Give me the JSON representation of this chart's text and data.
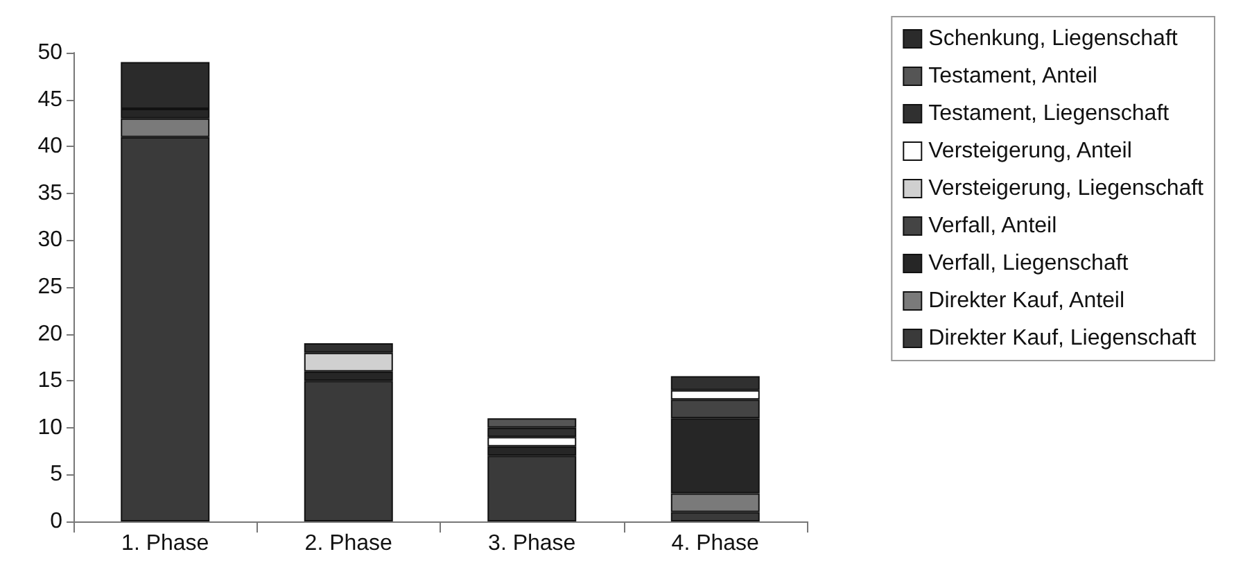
{
  "chart_data": {
    "type": "bar",
    "stacked": true,
    "categories": [
      "1. Phase",
      "2. Phase",
      "3. Phase",
      "4. Phase"
    ],
    "series": [
      {
        "name": "Direkter Kauf, Liegenschaft",
        "color": "#3a3a3a",
        "values": [
          41,
          15,
          7,
          1
        ]
      },
      {
        "name": "Direkter Kauf, Anteil",
        "color": "#7a7a7a",
        "values": [
          2,
          null,
          null,
          2
        ]
      },
      {
        "name": "Verfall, Liegenschaft",
        "color": "#262626",
        "values": [
          1,
          1,
          1,
          8
        ]
      },
      {
        "name": "Verfall, Anteil",
        "color": "#444444",
        "values": [
          null,
          null,
          null,
          2
        ]
      },
      {
        "name": "Versteigerung, Liegenschaft",
        "color": "#d0d0d0",
        "values": [
          null,
          2,
          null,
          null
        ]
      },
      {
        "name": "Versteigerung, Anteil",
        "color": "#ffffff",
        "values": [
          null,
          null,
          1,
          1
        ]
      },
      {
        "name": "Testament, Liegenschaft",
        "color": "#303030",
        "values": [
          null,
          1,
          1,
          1.5
        ]
      },
      {
        "name": "Testament, Anteil",
        "color": "#555555",
        "values": [
          null,
          null,
          1,
          null
        ]
      },
      {
        "name": "Schenkung, Liegenschaft",
        "color": "#2b2b2b",
        "values": [
          5,
          null,
          null,
          null
        ]
      }
    ],
    "ylim": [
      0,
      50
    ],
    "yticks": [
      0,
      5,
      10,
      15,
      20,
      25,
      30,
      35,
      40,
      45,
      50
    ],
    "grid": false,
    "legend": "right"
  }
}
